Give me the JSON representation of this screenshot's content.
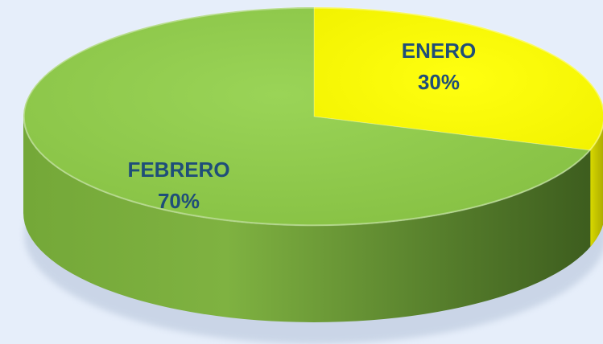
{
  "chart_data": {
    "type": "pie",
    "style": "3d",
    "title": "",
    "slices": [
      {
        "label": "ENERO",
        "value": 30,
        "value_label": "30%",
        "color": "#ffff00"
      },
      {
        "label": "FEBRERO",
        "value": 70,
        "value_label": "70%",
        "color": "#92d050"
      }
    ],
    "label_color": "#1f4e79",
    "start_angle": "12 o'clock",
    "direction": "clockwise",
    "legend": "none"
  }
}
